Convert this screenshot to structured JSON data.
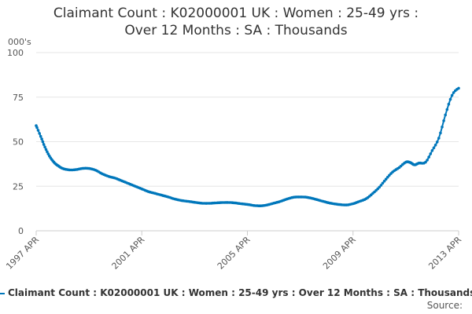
{
  "chart_data": {
    "type": "line",
    "title_lines": [
      "Claimant Count : K02000001 UK : Women : 25-49 yrs :",
      "Over 12 Months : SA : Thousands"
    ],
    "ylabel": "000's",
    "ylim": [
      0,
      100
    ],
    "yticks": [
      0,
      25,
      50,
      75,
      100
    ],
    "xlim": [
      1997.25,
      2013.25
    ],
    "xticks": [
      {
        "value": 1997.25,
        "label": "1997 APR"
      },
      {
        "value": 2001.25,
        "label": "2001 APR"
      },
      {
        "value": 2005.25,
        "label": "2005 APR"
      },
      {
        "value": 2009.25,
        "label": "2009 APR"
      },
      {
        "value": 2013.25,
        "label": "2013 APR"
      }
    ],
    "grid": true,
    "legend_position": "bottom",
    "series": [
      {
        "name": "Claimant Count : K02000001 UK : Women : 25-49 yrs : Over 12 Months : SA : Thousands",
        "color": "#0077bb",
        "points": [
          [
            1997.25,
            59
          ],
          [
            1997.42,
            53
          ],
          [
            1997.58,
            47
          ],
          [
            1997.75,
            42
          ],
          [
            1997.92,
            38.5
          ],
          [
            1998.08,
            36.5
          ],
          [
            1998.25,
            35
          ],
          [
            1998.5,
            34.2
          ],
          [
            1998.75,
            34.3
          ],
          [
            1999.0,
            35
          ],
          [
            1999.25,
            35
          ],
          [
            1999.5,
            34
          ],
          [
            1999.75,
            32
          ],
          [
            2000.0,
            30.5
          ],
          [
            2000.25,
            29.5
          ],
          [
            2000.5,
            28
          ],
          [
            2000.75,
            26.5
          ],
          [
            2001.0,
            25
          ],
          [
            2001.25,
            23.5
          ],
          [
            2001.5,
            22
          ],
          [
            2001.75,
            21
          ],
          [
            2002.0,
            20
          ],
          [
            2002.25,
            19
          ],
          [
            2002.5,
            17.8
          ],
          [
            2002.75,
            17
          ],
          [
            2003.0,
            16.5
          ],
          [
            2003.25,
            16
          ],
          [
            2003.5,
            15.5
          ],
          [
            2003.75,
            15.4
          ],
          [
            2004.0,
            15.6
          ],
          [
            2004.25,
            15.8
          ],
          [
            2004.5,
            15.9
          ],
          [
            2004.75,
            15.7
          ],
          [
            2005.0,
            15.2
          ],
          [
            2005.25,
            14.8
          ],
          [
            2005.5,
            14.2
          ],
          [
            2005.75,
            14.0
          ],
          [
            2006.0,
            14.5
          ],
          [
            2006.25,
            15.5
          ],
          [
            2006.5,
            16.5
          ],
          [
            2006.75,
            17.8
          ],
          [
            2007.0,
            18.8
          ],
          [
            2007.25,
            19.0
          ],
          [
            2007.5,
            18.8
          ],
          [
            2007.75,
            18.0
          ],
          [
            2008.0,
            17.0
          ],
          [
            2008.25,
            16.0
          ],
          [
            2008.5,
            15.2
          ],
          [
            2008.75,
            14.7
          ],
          [
            2009.0,
            14.5
          ],
          [
            2009.25,
            15.2
          ],
          [
            2009.5,
            16.5
          ],
          [
            2009.75,
            18.0
          ],
          [
            2010.0,
            21.0
          ],
          [
            2010.25,
            24.5
          ],
          [
            2010.5,
            29
          ],
          [
            2010.75,
            33
          ],
          [
            2011.0,
            35.5
          ],
          [
            2011.25,
            38.5
          ],
          [
            2011.42,
            38.3
          ],
          [
            2011.58,
            37
          ],
          [
            2011.75,
            38
          ],
          [
            2012.0,
            38.5
          ],
          [
            2012.25,
            45
          ],
          [
            2012.5,
            52
          ],
          [
            2012.75,
            65
          ],
          [
            2013.0,
            76
          ],
          [
            2013.25,
            80
          ],
          [
            2013.5,
            81
          ],
          [
            2013.75,
            80.8
          ],
          [
            2014.0,
            80
          ]
        ]
      }
    ],
    "source_label": "Source:"
  }
}
